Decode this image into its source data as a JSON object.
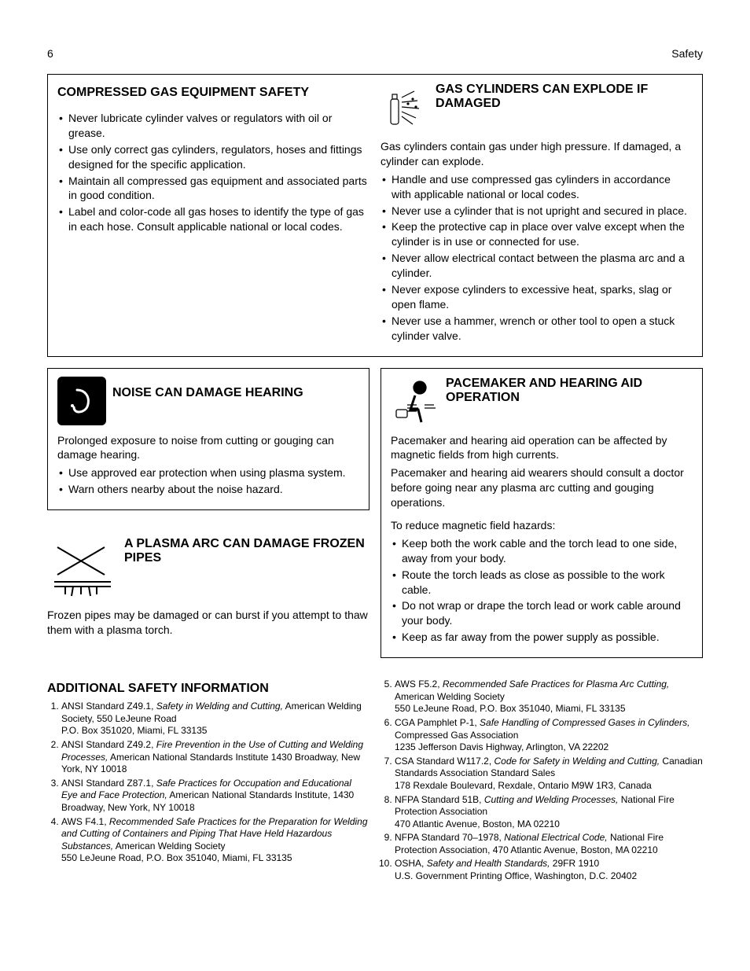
{
  "page_number": "6",
  "header_right": "Safety",
  "section1": {
    "left": {
      "title": "COMPRESSED GAS EQUIPMENT SAFETY",
      "bullets": [
        "Never lubricate cylinder valves or regulators with oil or grease.",
        "Use only correct gas cylinders, regulators, hoses and fittings designed for the specific application.",
        "Maintain all compressed gas equipment and associated parts in good condition.",
        "Label and color-code all gas hoses to identify the type of gas in each hose. Consult applicable national or local codes."
      ]
    },
    "right": {
      "title": "GAS CYLINDERS CAN EXPLODE IF DAMAGED",
      "intro": "Gas cylinders contain gas under high pressure. If damaged, a cylinder can explode.",
      "bullets": [
        "Handle and use compressed gas cylinders in accordance with applicable national or local codes.",
        "Never use a cylinder that is not upright and secured in place.",
        "Keep the protective cap in place over valve except when the cylinder is in use or connected for use.",
        "Never allow electrical contact between the plasma arc and a cylinder.",
        "Never expose cylinders to excessive heat, sparks, slag or open flame.",
        "Never use a hammer, wrench or other tool to open a stuck cylinder valve."
      ]
    }
  },
  "section2_left_a": {
    "title": "NOISE CAN DAMAGE HEARING",
    "intro": "Prolonged exposure to noise from cutting or gouging can damage hearing.",
    "bullets": [
      "Use approved ear protection when using plasma system.",
      "Warn others nearby about the noise hazard."
    ]
  },
  "section2_left_b": {
    "title": "A PLASMA ARC CAN DAMAGE FROZEN PIPES",
    "intro": "Frozen pipes may be damaged or can burst if you attempt to thaw them with a plasma torch."
  },
  "section2_right": {
    "title": "PACEMAKER AND HEARING AID OPERATION",
    "p1": "Pacemaker and hearing aid operation can be affected by magnetic fields from high currents.",
    "p2": "Pacemaker and hearing aid wearers should consult a doctor before going near any plasma arc cutting and gouging operations.",
    "sub": "To reduce magnetic field hazards:",
    "bullets": [
      "Keep both the work cable and the torch lead to one side, away from your body.",
      "Route the torch leads as close as possible to the work cable.",
      "Do not wrap or drape the torch lead or work cable around your body.",
      "Keep as far away from the power supply as possible."
    ]
  },
  "additional": {
    "title": "ADDITIONAL SAFETY INFORMATION",
    "refs": [
      {
        "prefix": "ANSI Standard Z49.1, ",
        "title": "Safety in Welding and Cutting,",
        "rest": " American Welding Society, 550 LeJeune Road",
        "line2": "P.O. Box 351020, Miami, FL 33135"
      },
      {
        "prefix": "ANSI Standard Z49.2, ",
        "title": "Fire Prevention in the Use of Cutting and Welding Processes,",
        "rest": " American National Standards Institute 1430 Broadway, New York, NY 10018",
        "line2": ""
      },
      {
        "prefix": "ANSI Standard Z87.1, ",
        "title": "Safe Practices for Occupation and Educational Eye and Face Protection,",
        "rest": " American National Standards Institute, 1430 Broadway, New York, NY 10018",
        "line2": ""
      },
      {
        "prefix": "AWS F4.1, ",
        "title": "Recommended Safe Practices for the Preparation for Welding and Cutting of Containers and Piping That Have Held Hazardous Substances,",
        "rest": " American Welding Society",
        "line2": "550 LeJeune Road, P.O. Box 351040, Miami, FL 33135"
      },
      {
        "prefix": "AWS F5.2, ",
        "title": "Recommended Safe Practices for Plasma Arc Cutting,",
        "rest": " American Welding Society",
        "line2": "550 LeJeune Road, P.O. Box 351040, Miami, FL 33135"
      },
      {
        "prefix": "CGA Pamphlet P-1, ",
        "title": "Safe Handling of Compressed Gases in Cylinders,",
        "rest": " Compressed Gas Association",
        "line2": "1235 Jefferson Davis Highway, Arlington, VA 22202"
      },
      {
        "prefix": "CSA Standard W117.2, ",
        "title": "Code for Safety in Welding and Cutting,",
        "rest": " Canadian Standards Association Standard Sales",
        "line2": "178 Rexdale Boulevard, Rexdale, Ontario M9W 1R3, Canada"
      },
      {
        "prefix": "NFPA Standard 51B, ",
        "title": "Cutting and Welding Processes,",
        "rest": " National Fire Protection Association",
        "line2": "470 Atlantic Avenue, Boston, MA 02210"
      },
      {
        "prefix": "NFPA Standard 70–1978, ",
        "title": "National Electrical Code,",
        "rest": " National Fire Protection Association, 470 Atlantic Avenue, Boston, MA 02210",
        "line2": ""
      },
      {
        "prefix": "OSHA, ",
        "title": "Safety and Health Standards,",
        "rest": " 29FR 1910",
        "line2": "U.S. Government Printing Office, Washington, D.C. 20402"
      }
    ]
  }
}
